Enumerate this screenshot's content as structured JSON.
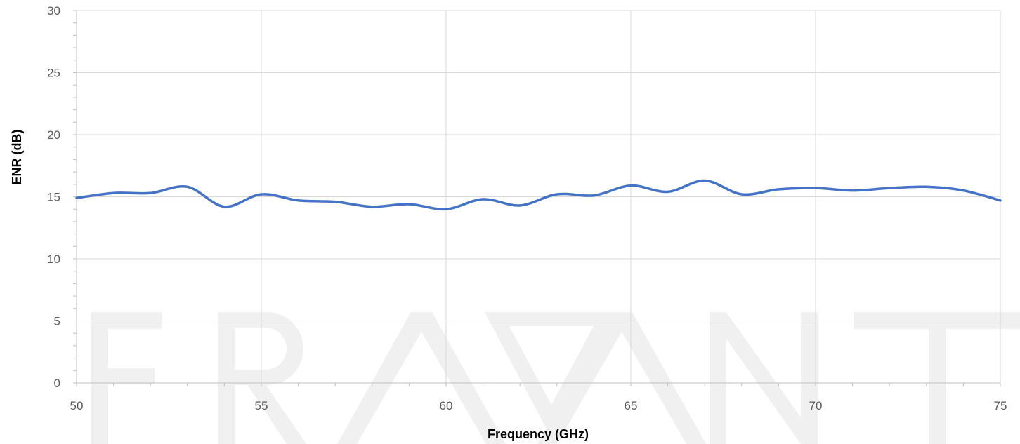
{
  "chart_data": {
    "type": "line",
    "xlabel": "Frequency (GHz)",
    "ylabel": "ENR (dB)",
    "xlim": [
      50,
      75
    ],
    "ylim": [
      0,
      30
    ],
    "x_ticks": [
      50,
      55,
      60,
      65,
      70,
      75
    ],
    "y_ticks": [
      0,
      5,
      10,
      15,
      20,
      25,
      30
    ],
    "grid": true,
    "legend": "none",
    "series": [
      {
        "color": "#4472C4",
        "x": [
          50,
          51,
          52,
          53,
          54,
          55,
          56,
          57,
          58,
          59,
          60,
          61,
          62,
          63,
          64,
          65,
          66,
          67,
          68,
          69,
          70,
          71,
          72,
          73,
          74,
          75
        ],
        "y": [
          14.9,
          15.3,
          15.3,
          15.8,
          14.2,
          15.2,
          14.7,
          14.6,
          14.2,
          14.4,
          14.0,
          14.8,
          14.3,
          15.2,
          15.1,
          15.9,
          15.4,
          16.3,
          15.2,
          15.6,
          15.7,
          15.5,
          15.7,
          15.8,
          15.5,
          14.7
        ]
      }
    ]
  },
  "watermark": {
    "text": "ERAVANT",
    "color": "#f0f0f0"
  }
}
